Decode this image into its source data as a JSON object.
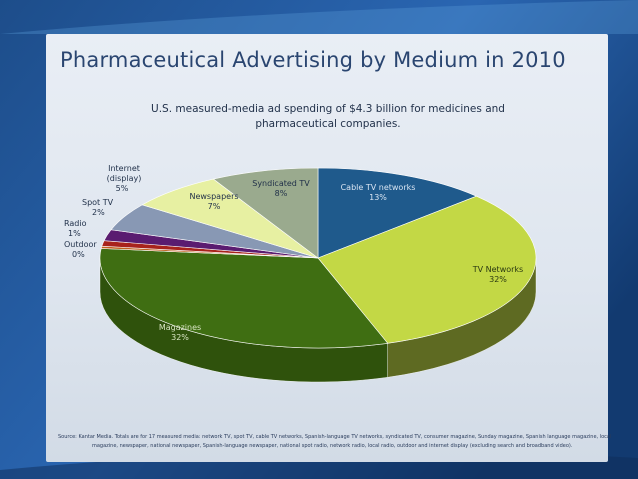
{
  "slide": {
    "title": "Pharmaceutical Advertising by Medium in 2010",
    "subtitle_line1": "U.S. measured-media ad spending of $4.3 billion for medicines and",
    "subtitle_line2": "pharmaceutical companies.",
    "source_line1": "Source: Kantar Media.  Totals are for 17 measured media: network TV, spot TV, cable TV networks, Spanish-language TV networks, syndicated TV, consumer magazine, Sunday magazine, Spanish language magazine, local",
    "source_line2": "magazine, newspaper, national newspaper, Spanish-language newspaper, national spot radio, network radio, local radio, outdoor and internet display (excluding search and broadband video)."
  },
  "chart_data": {
    "type": "pie",
    "style": "3d",
    "title": "Pharmaceutical Advertising by Medium in 2010",
    "slices": [
      {
        "name": "Cable TV networks",
        "label": "Cable TV networks",
        "pct_label": "13%",
        "value": 13,
        "color": "#1f5a8c",
        "side": "#163e61"
      },
      {
        "name": "TV Networks",
        "label": "TV Networks",
        "pct_label": "32%",
        "value": 32,
        "color": "#c3d845",
        "side": "#5e6a22"
      },
      {
        "name": "Magazines",
        "label": "Magazines",
        "pct_label": "32%",
        "value": 32,
        "color": "#3f6e12",
        "side": "#2f520c"
      },
      {
        "name": "Outdoor",
        "label": "Outdoor",
        "pct_label": "0%",
        "value": 0.4,
        "color": "#c06020",
        "side": "#8a4418"
      },
      {
        "name": "Radio",
        "label": "Radio",
        "pct_label": "1%",
        "value": 1,
        "color": "#a8231c",
        "side": "#7a1a14"
      },
      {
        "name": "Spot TV",
        "label": "Spot TV",
        "pct_label": "2%",
        "value": 2,
        "color": "#5a1c70",
        "side": "#3e1350"
      },
      {
        "name": "Internet (display)",
        "label": "Internet (display)",
        "pct_label": "5%",
        "value": 5,
        "color": "#8898b4",
        "side": "#5c6a82"
      },
      {
        "name": "Newspapers",
        "label": "Newspapers",
        "pct_label": "7%",
        "value": 7,
        "color": "#e7f0a2",
        "side": "#9aa26a"
      },
      {
        "name": "Syndicated TV",
        "label": "Syndicated TV",
        "pct_label": "8%",
        "value": 8,
        "color": "#9aaa8e",
        "side": "#6a7862"
      }
    ]
  }
}
